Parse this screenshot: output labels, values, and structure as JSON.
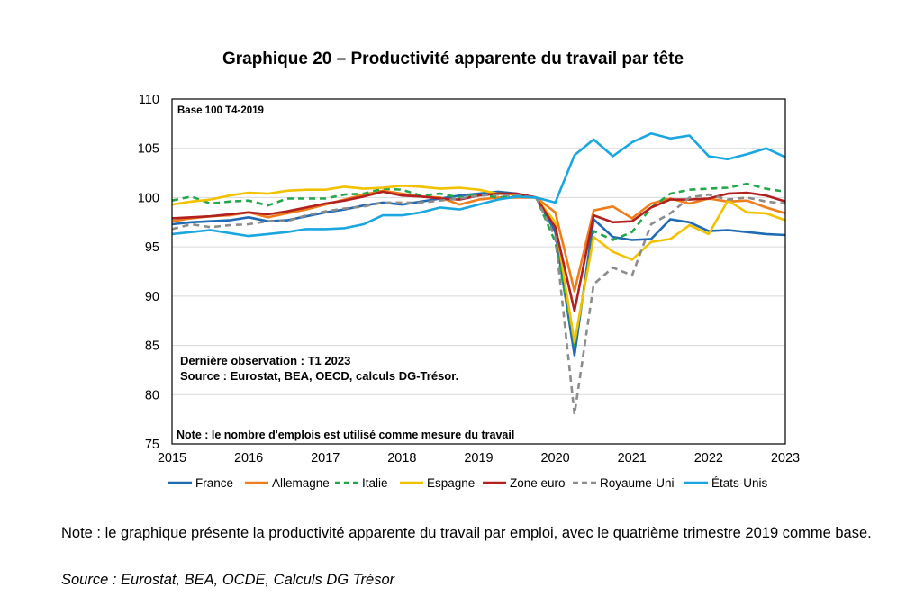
{
  "chart_data": {
    "type": "line",
    "title": "Graphique 20 – Productivité apparente du travail par tête",
    "base_label": "Base 100 T4-2019",
    "annotation_observation": "Dernière observation : T1 2023",
    "annotation_source": "Source : Eurostat, BEA, OECD, calculs DG-Trésor.",
    "annotation_note": "Note : le nombre d'emplois est utilisé comme mesure du travail",
    "ylim": [
      75,
      110
    ],
    "yticks": [
      75,
      80,
      85,
      90,
      95,
      100,
      105,
      110
    ],
    "xlim": [
      2015,
      2023
    ],
    "xticks": [
      "2015",
      "2016",
      "2017",
      "2018",
      "2019",
      "2020",
      "2021",
      "2022",
      "2023"
    ],
    "x": [
      2015.0,
      2015.25,
      2015.5,
      2015.75,
      2016.0,
      2016.25,
      2016.5,
      2016.75,
      2017.0,
      2017.25,
      2017.5,
      2017.75,
      2018.0,
      2018.25,
      2018.5,
      2018.75,
      2019.0,
      2019.25,
      2019.5,
      2019.75,
      2020.0,
      2020.25,
      2020.5,
      2020.75,
      2021.0,
      2021.25,
      2021.5,
      2021.75,
      2022.0,
      2022.25,
      2022.5,
      2022.75,
      2023.0
    ],
    "series": [
      {
        "name": "France",
        "color": "#1f6bb3",
        "dash": "solid",
        "values": [
          97.3,
          97.5,
          97.6,
          97.7,
          98.0,
          97.6,
          97.7,
          98.1,
          98.5,
          98.8,
          99.2,
          99.5,
          99.3,
          99.6,
          99.9,
          100.2,
          100.4,
          100.6,
          100.4,
          100.0,
          96.5,
          84.0,
          97.8,
          96.0,
          95.7,
          95.8,
          97.8,
          97.5,
          96.6,
          96.7,
          96.5,
          96.3,
          96.2
        ]
      },
      {
        "name": "Allemagne",
        "color": "#f07d1b",
        "dash": "solid",
        "values": [
          97.6,
          97.9,
          98.1,
          98.2,
          98.5,
          98.0,
          98.4,
          98.8,
          99.3,
          99.8,
          100.3,
          100.7,
          100.4,
          100.1,
          100.0,
          99.3,
          99.8,
          100.0,
          100.0,
          100.0,
          98.5,
          90.5,
          98.7,
          99.1,
          97.9,
          99.4,
          99.9,
          99.4,
          99.9,
          99.6,
          99.7,
          99.0,
          98.4
        ]
      },
      {
        "name": "Italie",
        "color": "#22a84a",
        "dash": "dash",
        "values": [
          99.7,
          100.1,
          99.4,
          99.6,
          99.7,
          99.2,
          99.9,
          99.9,
          99.9,
          100.3,
          100.4,
          100.9,
          100.8,
          100.2,
          100.4,
          100.0,
          100.3,
          100.0,
          100.2,
          100.0,
          95.5,
          85.0,
          96.6,
          95.7,
          96.5,
          99.0,
          100.4,
          100.8,
          100.9,
          101.0,
          101.4,
          100.9,
          100.6
        ]
      },
      {
        "name": "Espagne",
        "color": "#f2c200",
        "dash": "solid",
        "values": [
          99.3,
          99.6,
          99.8,
          100.2,
          100.5,
          100.4,
          100.7,
          100.8,
          100.8,
          101.1,
          100.9,
          101.0,
          101.2,
          101.1,
          100.9,
          101.0,
          100.8,
          100.4,
          100.3,
          100.0,
          97.5,
          85.3,
          96.0,
          94.5,
          93.7,
          95.5,
          95.8,
          97.2,
          96.3,
          99.7,
          98.5,
          98.4,
          97.7
        ]
      },
      {
        "name": "Zone euro",
        "color": "#b22020",
        "dash": "solid",
        "values": [
          97.9,
          98.0,
          98.1,
          98.3,
          98.5,
          98.3,
          98.6,
          99.0,
          99.4,
          99.7,
          100.1,
          100.6,
          100.2,
          100.1,
          99.9,
          99.8,
          100.2,
          100.4,
          100.4,
          100.0,
          97.0,
          88.5,
          98.2,
          97.5,
          97.6,
          99.0,
          99.8,
          99.8,
          99.9,
          100.4,
          100.5,
          100.2,
          99.6
        ]
      },
      {
        "name": "Royaume-Uni",
        "color": "#8c8c8c",
        "dash": "dash",
        "values": [
          96.8,
          97.3,
          97.0,
          97.2,
          97.3,
          97.6,
          97.6,
          98.2,
          98.6,
          98.9,
          99.1,
          99.5,
          99.5,
          99.5,
          99.7,
          99.9,
          100.2,
          100.3,
          100.2,
          100.0,
          96.0,
          78.0,
          91.2,
          92.9,
          92.1,
          97.3,
          98.4,
          100.0,
          100.3,
          99.8,
          100.0,
          99.6,
          99.4
        ]
      },
      {
        "name": "États-Unis",
        "color": "#1aa6e0",
        "dash": "solid",
        "values": [
          96.3,
          96.5,
          96.7,
          96.4,
          96.1,
          96.3,
          96.5,
          96.8,
          96.8,
          96.9,
          97.3,
          98.2,
          98.2,
          98.5,
          99.0,
          98.8,
          99.3,
          99.8,
          100.1,
          100.0,
          99.5,
          104.3,
          105.9,
          104.2,
          105.6,
          106.5,
          106.0,
          106.3,
          104.2,
          103.9,
          104.4,
          105.0,
          104.1
        ]
      }
    ]
  },
  "note_text": "Note : le graphique présente la productivité apparente du travail par emploi, avec le quatrième trimestre 2019 comme base.",
  "source_text": "Source : Eurostat, BEA, OCDE, Calculs DG Trésor"
}
